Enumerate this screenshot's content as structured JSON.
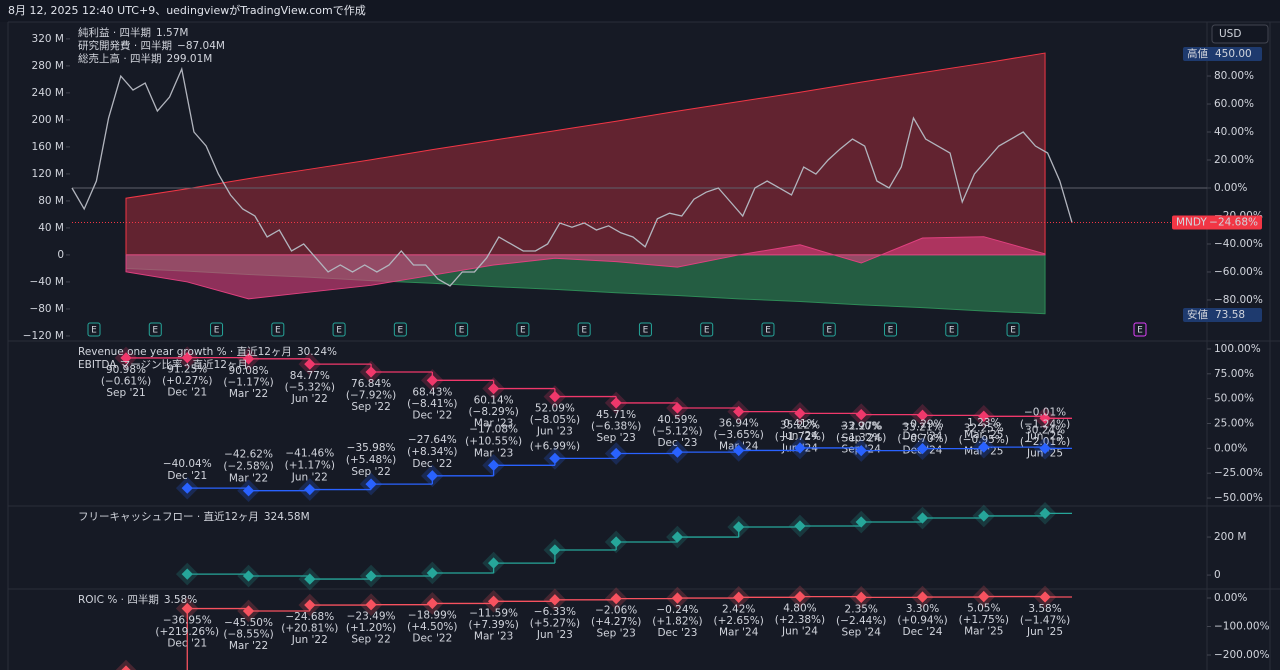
{
  "header": {
    "title": "8月 12, 2025 12:40 UTC+9、uedingviewがTradingView.comで作成"
  },
  "chart_data": [
    {
      "type": "area",
      "currency": "USD",
      "events_label": "E",
      "high_label": "高値",
      "high": {
        "value": 450,
        "label": "450.00"
      },
      "low_label": "安値",
      "low": {
        "value": 73.58,
        "label": "73.58"
      },
      "ylim": [
        -126,
        345
      ],
      "yticks": [
        {
          "value": 320,
          "label": "320 M"
        },
        {
          "value": 280,
          "label": "280 M"
        },
        {
          "value": 240,
          "label": "240 M"
        },
        {
          "value": 200,
          "label": "200 M"
        },
        {
          "value": 160,
          "label": "160 M"
        },
        {
          "value": 120,
          "label": "120 M"
        },
        {
          "value": 80,
          "label": "80 M"
        },
        {
          "value": 40,
          "label": "40 M"
        },
        0,
        {
          "value": -40,
          "label": "−40 M"
        },
        {
          "value": -80,
          "label": "−80 M"
        },
        {
          "value": -120,
          "label": "−120 M"
        }
      ],
      "y2lim": [
        -108.6,
        118.6
      ],
      "y2ticks": [
        {
          "value": 80,
          "label": "80.00%"
        },
        {
          "value": 60,
          "label": "60.00%"
        },
        {
          "value": 40,
          "label": "40.00%"
        },
        {
          "value": 20,
          "label": "20.00%"
        },
        {
          "value": 0,
          "label": "0.00%"
        },
        {
          "value": -20,
          "label": "−20.00%"
        },
        {
          "value": -40,
          "label": "−40.00%"
        },
        {
          "value": -60,
          "label": "−60.00%"
        },
        {
          "value": -80,
          "label": "−80.00%"
        }
      ],
      "series": [
        {
          "name": "純利益 · 四半期",
          "color": "#e0407f",
          "last_label": "1.57M",
          "values": [
            -25,
            -40,
            -65,
            -55,
            -45,
            -30,
            -15,
            -5,
            -10,
            -18,
            0,
            15,
            -12,
            25,
            27,
            1.57
          ]
        },
        {
          "name": "研究開発費 · 四半期",
          "color": "#2e8b57",
          "last_label": "−87.04M",
          "values": [
            -20,
            -24,
            -29,
            -33,
            -38,
            -42,
            -47,
            -51,
            -56,
            -60,
            -65,
            -69,
            -74,
            -78,
            -83,
            -87.04
          ]
        },
        {
          "name": "総売上高 · 四半期",
          "color": "#f23645",
          "last_label": "299.01M",
          "values": [
            84,
            98,
            113,
            127,
            141,
            156,
            170,
            184,
            198,
            213,
            227,
            241,
            256,
            270,
            284,
            299.01
          ]
        },
        {
          "name": "MNDY",
          "axis": "y2",
          "color": "#b2b5be",
          "last_label": "−24.68%",
          "values": [
            0,
            -15,
            5,
            50,
            80,
            70,
            75,
            55,
            65,
            85,
            40,
            30,
            10,
            -5,
            -15,
            -20,
            -35,
            -30,
            -45,
            -40,
            -50,
            -60,
            -55,
            -60,
            -55,
            -60,
            -55,
            -45,
            -55,
            -55,
            -65,
            -70,
            -60,
            -60,
            -50,
            -35,
            -40,
            -45,
            -45,
            -40,
            -25,
            -28,
            -25,
            -30,
            -27,
            -32,
            -35,
            -42,
            -22,
            -18,
            -20,
            -8,
            -3,
            0,
            -10,
            -20,
            0,
            5,
            0,
            -5,
            15,
            10,
            20,
            28,
            35,
            30,
            5,
            0,
            15,
            50,
            35,
            30,
            25,
            -10,
            10,
            20,
            30,
            35,
            40,
            30,
            25,
            5,
            -24.68
          ]
        }
      ]
    },
    {
      "type": "step",
      "categories": [
        "Sep '21",
        "Dec '21",
        "Mar '22",
        "Jun '22",
        "Sep '22",
        "Dec '22",
        "Mar '23",
        "Jun '23",
        "Sep '23",
        "Dec '23",
        "Mar '24",
        "Jun '24",
        "Sep '24",
        "Dec '24",
        "Mar '25",
        "Jun '25"
      ],
      "ylim": [
        -57,
        107
      ],
      "yticks": [
        {
          "value": 100,
          "label": "100.00%"
        },
        {
          "value": 75,
          "label": "75.00%"
        },
        {
          "value": 50,
          "label": "50.00%"
        },
        {
          "value": 25,
          "label": "25.00%"
        },
        {
          "value": 0,
          "label": "0.00%"
        },
        {
          "value": -25,
          "label": "−25.00%"
        },
        {
          "value": -50,
          "label": "−50.00%"
        }
      ],
      "series": [
        {
          "name": "Revenue one year growth % · 直近12ヶ月",
          "color": "#f0386b",
          "last_label": "30.24%",
          "values": [
            90.98,
            91.25,
            90.08,
            84.77,
            76.84,
            68.43,
            60.14,
            52.09,
            45.71,
            40.59,
            36.94,
            35.22,
            33.9,
            33.21,
            32.25,
            30.24
          ],
          "value_labels": [
            "90.98%",
            "91.25%",
            "90.08%",
            "84.77%",
            "76.84%",
            "68.43%",
            "60.14%",
            "52.09%",
            "45.71%",
            "40.59%",
            "36.94%",
            "35.22%",
            "33.90%",
            "33.21%",
            "32.25%",
            "30.24%"
          ],
          "change_labels": [
            "(−0.61%)",
            "(+0.27%)",
            "(−1.17%)",
            "(−5.32%)",
            "(−7.92%)",
            "(−8.41%)",
            "(−8.29%)",
            "(−8.05%)",
            "(−6.38%)",
            "(−5.12%)",
            "(−3.65%)",
            "(−1.72%)",
            "(−1.32%)",
            "(−0.70%)",
            "(−0.95%)",
            "(−2.01%)"
          ]
        },
        {
          "name": "EBITDA マージン比率 · 直近12ヶ月",
          "color": "#2962ff",
          "values": [
            null,
            -40.04,
            -42.62,
            -41.46,
            -35.98,
            -27.64,
            -17.08,
            -10.09,
            -5.2,
            -3.8,
            -2.1,
            0.41,
            -2.27,
            -0.29,
            1.23,
            -0.01
          ],
          "value_labels": [
            null,
            "−40.04%",
            "−42.62%",
            "−41.46%",
            "−35.98%",
            "−27.64%",
            "−17.08%",
            null,
            null,
            null,
            null,
            "0.41%",
            "−2.27%",
            "−0.29%",
            "1.23%",
            "−0.01%"
          ],
          "change_labels": [
            null,
            null,
            "(−2.58%)",
            "(+1.17%)",
            "(+5.48%)",
            "(+8.34%)",
            "(+10.55%)",
            "(+6.99%)",
            null,
            null,
            null,
            null,
            null,
            null,
            null,
            "(−1.24%)"
          ]
        }
      ]
    },
    {
      "type": "step",
      "categories": [
        null,
        null,
        null,
        null,
        null,
        null,
        null,
        null,
        null,
        null,
        null,
        null,
        null,
        null,
        null,
        null
      ],
      "ylim": [
        -68,
        358
      ],
      "yticks": [
        {
          "value": 200,
          "label": "200 M"
        },
        0
      ],
      "series": [
        {
          "name": "フリーキャッシュフロー · 直近12ヶ月",
          "color": "#26a69a",
          "last_label": "324.58M",
          "values": [
            null,
            5,
            -5,
            -21,
            -5,
            11,
            63,
            132,
            174,
            200,
            253,
            258,
            279,
            300,
            311,
            324.58
          ]
        }
      ]
    },
    {
      "type": "step",
      "categories": [
        null,
        "Dec '21",
        "Mar '22",
        "Jun '22",
        "Sep '22",
        "Dec '22",
        "Mar '23",
        "Jun '23",
        "Sep '23",
        "Dec '23",
        "Mar '24",
        "Jun '24",
        "Sep '24",
        "Dec '24",
        "Mar '25",
        "Jun '25"
      ],
      "ylim": [
        -252.6,
        28.1
      ],
      "yticks": [
        {
          "value": 0,
          "label": "0.00%"
        },
        {
          "value": -100,
          "label": "−100.00%"
        },
        {
          "value": -200,
          "label": "−200.00%"
        }
      ],
      "series": [
        {
          "name": "ROIC % · 四半期",
          "color": "#f7525f",
          "last_label": "3.58%",
          "values": [
            -256.21,
            -36.95,
            -45.5,
            -24.68,
            -23.49,
            -18.99,
            -11.59,
            -6.33,
            -2.06,
            -0.24,
            2.42,
            4.8,
            2.35,
            3.3,
            5.05,
            3.58
          ],
          "value_labels": [
            null,
            "−36.95%",
            "−45.50%",
            "−24.68%",
            "−23.49%",
            "−18.99%",
            "−11.59%",
            "−6.33%",
            "−2.06%",
            "−0.24%",
            "2.42%",
            "4.80%",
            "2.35%",
            "3.30%",
            "5.05%",
            "3.58%"
          ],
          "change_labels": [
            null,
            "(+219.26%)",
            "(−8.55%)",
            "(+20.81%)",
            "(+1.20%)",
            "(+4.50%)",
            "(+7.39%)",
            "(+5.27%)",
            "(+4.27%)",
            "(+1.82%)",
            "(+2.65%)",
            "(+2.38%)",
            "(−2.44%)",
            "(+0.94%)",
            "(+1.75%)",
            "(−1.47%)"
          ]
        }
      ]
    }
  ]
}
